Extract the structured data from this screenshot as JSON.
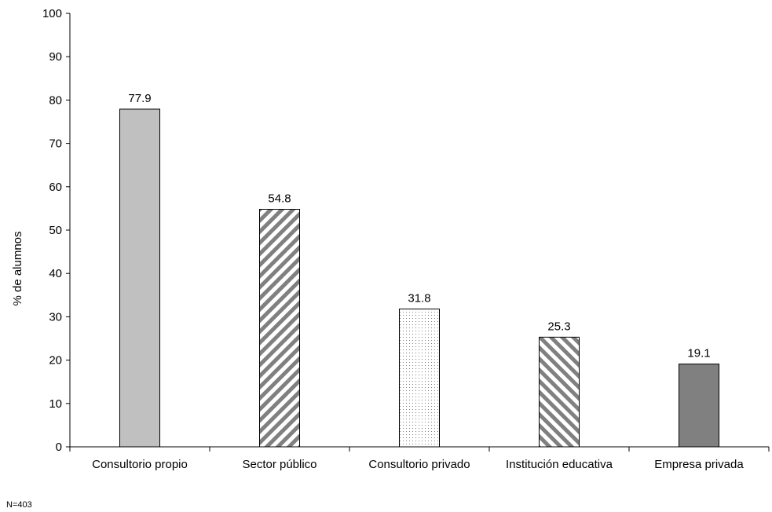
{
  "chart_data": {
    "type": "bar",
    "categories": [
      "Consultorio propio",
      "Sector público",
      "Consultorio privado",
      "Institución educativa",
      "Empresa privada"
    ],
    "values": [
      77.9,
      54.8,
      31.8,
      25.3,
      19.1
    ],
    "value_labels": [
      "77.9",
      "54.8",
      "31.8",
      "25.3",
      "19.1"
    ],
    "bar_styles": [
      "solid-light-gray",
      "diagonal-stripes-up",
      "dotted",
      "diagonal-stripes-down",
      "solid-dark-gray"
    ],
    "bar_colors": [
      "#c0c0c0",
      "#808080",
      "#808080",
      "#808080",
      "#808080"
    ],
    "title": "",
    "xlabel": "",
    "ylabel": "% de alumnos",
    "ylim": [
      0,
      100
    ],
    "yticks": [
      0,
      10,
      20,
      30,
      40,
      50,
      60,
      70,
      80,
      90,
      100
    ],
    "grid": false,
    "legend": "none"
  },
  "note": "N=403"
}
